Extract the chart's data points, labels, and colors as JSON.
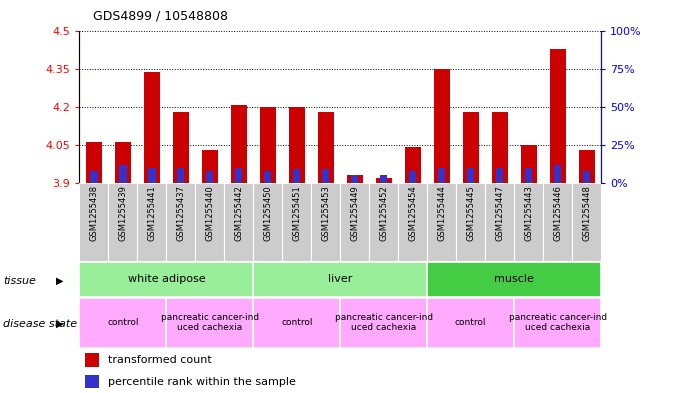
{
  "title": "GDS4899 / 10548808",
  "samples": [
    "GSM1255438",
    "GSM1255439",
    "GSM1255441",
    "GSM1255437",
    "GSM1255440",
    "GSM1255442",
    "GSM1255450",
    "GSM1255451",
    "GSM1255453",
    "GSM1255449",
    "GSM1255452",
    "GSM1255454",
    "GSM1255444",
    "GSM1255445",
    "GSM1255447",
    "GSM1255443",
    "GSM1255446",
    "GSM1255448"
  ],
  "transformed_count": [
    4.06,
    4.06,
    4.34,
    4.18,
    4.03,
    4.21,
    4.2,
    4.2,
    4.18,
    3.93,
    3.92,
    4.04,
    4.35,
    4.18,
    4.18,
    4.05,
    4.43,
    4.03
  ],
  "percentile_rank": [
    8,
    12,
    10,
    10,
    8,
    10,
    8,
    9,
    9,
    5,
    5,
    8,
    10,
    10,
    10,
    10,
    12,
    8
  ],
  "ymin": 3.9,
  "ymax": 4.5,
  "yticks": [
    3.9,
    4.05,
    4.2,
    4.35,
    4.5
  ],
  "right_yticks": [
    0,
    25,
    50,
    75,
    100
  ],
  "bar_color": "#cc0000",
  "percentile_color": "#3333cc",
  "bar_width": 0.55,
  "tissue_groups": [
    {
      "label": "white adipose",
      "start": 0,
      "end": 5,
      "color": "#99ee99"
    },
    {
      "label": "liver",
      "start": 6,
      "end": 11,
      "color": "#99ee99"
    },
    {
      "label": "muscle",
      "start": 12,
      "end": 17,
      "color": "#44cc44"
    }
  ],
  "disease_groups": [
    {
      "label": "control",
      "start": 0,
      "end": 2
    },
    {
      "label": "pancreatic cancer-ind\nuced cachexia",
      "start": 3,
      "end": 5
    },
    {
      "label": "control",
      "start": 6,
      "end": 8
    },
    {
      "label": "pancreatic cancer-ind\nuced cachexia",
      "start": 9,
      "end": 11
    },
    {
      "label": "control",
      "start": 12,
      "end": 14
    },
    {
      "label": "pancreatic cancer-ind\nuced cachexia",
      "start": 15,
      "end": 17
    }
  ],
  "tick_bg_color": "#cccccc",
  "disease_row_color": "#ffaaff"
}
